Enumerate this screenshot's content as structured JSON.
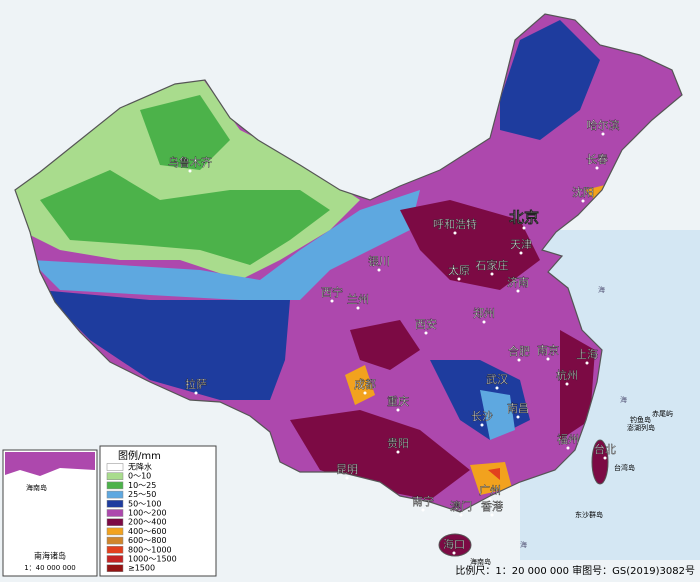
{
  "legend": {
    "title": "图例/mm",
    "items": [
      {
        "label": "无降水",
        "color": "#ffffff"
      },
      {
        "label": "0～10",
        "color": "#a9dc8d"
      },
      {
        "label": "10～25",
        "color": "#4cb24a"
      },
      {
        "label": "25～50",
        "color": "#5ea8e0"
      },
      {
        "label": "50～100",
        "color": "#1e3c9e"
      },
      {
        "label": "100～200",
        "color": "#ad48ad"
      },
      {
        "label": "200～400",
        "color": "#7c0a44"
      },
      {
        "label": "400～600",
        "color": "#f2a21e"
      },
      {
        "label": "600～800",
        "color": "#d0862c"
      },
      {
        "label": "800～1000",
        "color": "#e2401e"
      },
      {
        "label": "1000～1500",
        "color": "#c42424"
      },
      {
        "label": "≥1500",
        "color": "#941414"
      }
    ]
  },
  "cities": [
    "乌鲁木齐",
    "哈尔滨",
    "长春",
    "沈阳",
    "北京",
    "天津",
    "呼和浩特",
    "石家庄",
    "太原",
    "济南",
    "银川",
    "西宁",
    "兰州",
    "郑州",
    "西安",
    "合肥",
    "南京",
    "上海",
    "杭州",
    "武汉",
    "成都",
    "重庆",
    "拉萨",
    "长沙",
    "南昌",
    "福州",
    "贵阳",
    "昆明",
    "南宁",
    "广州",
    "澳门",
    "香港",
    "海口",
    "台北"
  ],
  "islands": [
    "台湾岛",
    "钓鱼岛",
    "赤尾屿",
    "澎湖列岛",
    "东沙群岛",
    "海南岛"
  ],
  "seas": [
    "海",
    "海",
    "海"
  ],
  "inset": {
    "title": "南海诸岛",
    "scale": "1：40 000 000",
    "label": "海南岛"
  },
  "footer": "比例尺：1：20 000 000  审图号：GS(2019)3082号"
}
